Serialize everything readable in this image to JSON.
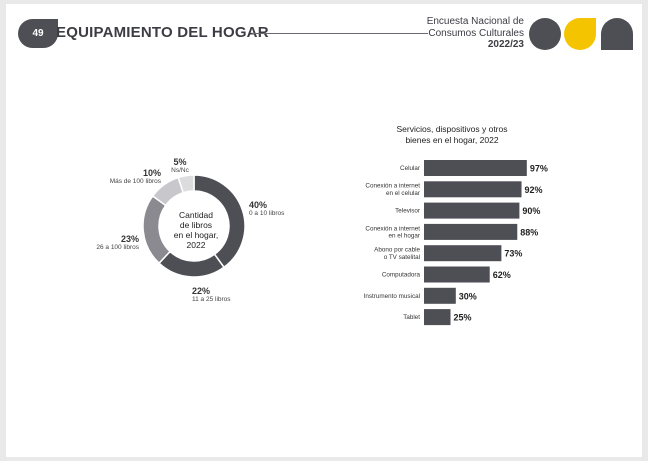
{
  "header": {
    "page_number": "49",
    "title": "EQUIPAMIENTO DEL HOGAR",
    "survey_line1": "Encuesta Nacional de",
    "survey_line2": "Consumos Culturales",
    "survey_year": "2022/23"
  },
  "colors": {
    "dark": "#4e4e55",
    "mid": "#8a8a90",
    "light": "#c8c8cc",
    "lighter": "#dcdcdf",
    "accent": "#f5c400"
  },
  "chart_data": [
    {
      "type": "pie",
      "title": "Cantidad de libros en el hogar, 2022",
      "center_lines": [
        "Cantidad",
        "de libros",
        "en el hogar,",
        "2022"
      ],
      "slices": [
        {
          "label": "0 a 10 libros",
          "value": 40,
          "pct_label": "40%"
        },
        {
          "label": "11 a 25 libros",
          "value": 22,
          "pct_label": "22%"
        },
        {
          "label": "26 a 100 libros",
          "value": 23,
          "pct_label": "23%"
        },
        {
          "label": "Más de 100 libros",
          "value": 10,
          "pct_label": "10%"
        },
        {
          "label": "Ns/Nc",
          "value": 5,
          "pct_label": "5%"
        }
      ]
    },
    {
      "type": "bar",
      "orientation": "horizontal",
      "title_lines": [
        "Servicios, dispositivos y otros",
        "bienes en el hogar, 2022"
      ],
      "categories": [
        [
          "Celular"
        ],
        [
          "Conexión a internet",
          "en el celular"
        ],
        [
          "Televisor"
        ],
        [
          "Conexión a internet",
          "en el hogar"
        ],
        [
          "Abono por cable",
          "o TV satelital"
        ],
        [
          "Computadora"
        ],
        [
          "Instrumento musical"
        ],
        [
          "Tablet"
        ]
      ],
      "values": [
        97,
        92,
        90,
        88,
        73,
        62,
        30,
        25
      ],
      "value_labels": [
        "97%",
        "92%",
        "90%",
        "88%",
        "73%",
        "62%",
        "30%",
        "25%"
      ],
      "xlim": [
        0,
        100
      ]
    }
  ]
}
